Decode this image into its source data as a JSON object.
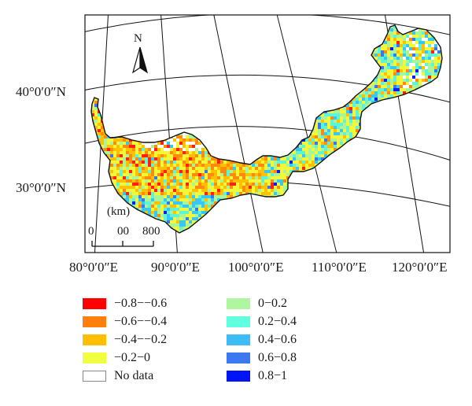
{
  "map": {
    "north_label": "N",
    "latitude_labels": [
      {
        "text": "40°0′0″N",
        "value": 40
      },
      {
        "text": "30°0′0″N",
        "value": 30
      }
    ],
    "longitude_labels": [
      {
        "text": "80°0′0″E",
        "value": 80
      },
      {
        "text": "90°0′0″E",
        "value": 90
      },
      {
        "text": "100°0′0″E",
        "value": 100
      },
      {
        "text": "110°0′0″E",
        "value": 110
      },
      {
        "text": "120°0′0″E",
        "value": 120
      }
    ],
    "scale_bar": {
      "unit": "(km)",
      "ticks": [
        "0",
        "00",
        "800"
      ]
    },
    "fill_colors": [
      "#ff2010",
      "#ff8a10",
      "#ffc000",
      "#f2f73a",
      "#a8f59a",
      "#60f4d6",
      "#38c6f4",
      "#3a76f0",
      "#0a1cf0"
    ]
  },
  "legend": {
    "items": [
      {
        "label": "−0.8−−0.6",
        "color": "#ff0000"
      },
      {
        "label": "−0.6−−0.4",
        "color": "#ff7f0e"
      },
      {
        "label": "−0.4−−0.2",
        "color": "#ffbf00"
      },
      {
        "label": "−0.2−0",
        "color": "#f0ff40"
      },
      {
        "label": "No data",
        "color": "#ffffff"
      },
      {
        "label": "0−0.2",
        "color": "#b0f5a0"
      },
      {
        "label": "0.2−0.4",
        "color": "#60ffe0"
      },
      {
        "label": "0.4−0.6",
        "color": "#3cbef5"
      },
      {
        "label": "0.6−0.8",
        "color": "#3c78f0"
      },
      {
        "label": "0.8−1",
        "color": "#0014f5"
      }
    ]
  }
}
